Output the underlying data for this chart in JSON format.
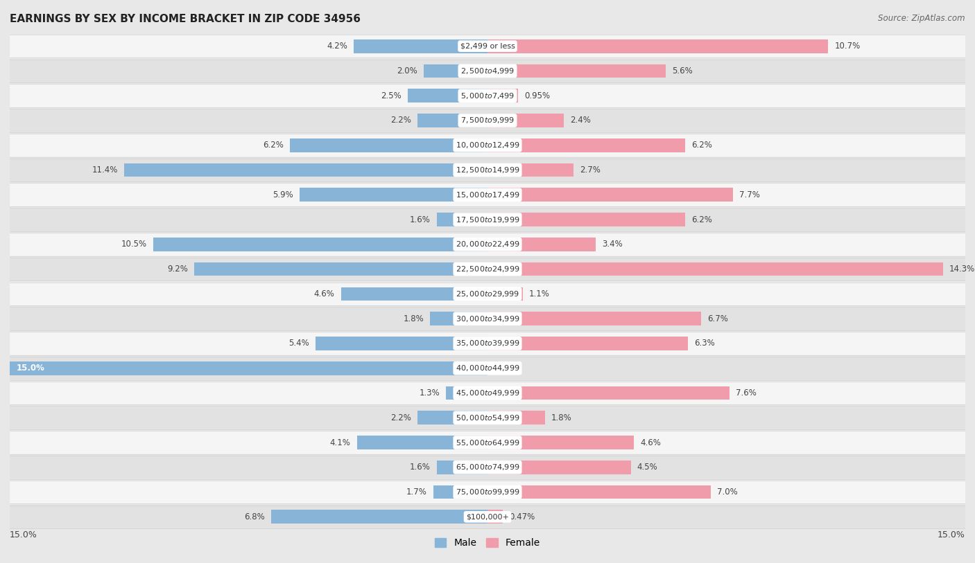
{
  "title": "EARNINGS BY SEX BY INCOME BRACKET IN ZIP CODE 34956",
  "source": "Source: ZipAtlas.com",
  "categories": [
    "$2,499 or less",
    "$2,500 to $4,999",
    "$5,000 to $7,499",
    "$7,500 to $9,999",
    "$10,000 to $12,499",
    "$12,500 to $14,999",
    "$15,000 to $17,499",
    "$17,500 to $19,999",
    "$20,000 to $22,499",
    "$22,500 to $24,999",
    "$25,000 to $29,999",
    "$30,000 to $34,999",
    "$35,000 to $39,999",
    "$40,000 to $44,999",
    "$45,000 to $49,999",
    "$50,000 to $54,999",
    "$55,000 to $64,999",
    "$65,000 to $74,999",
    "$75,000 to $99,999",
    "$100,000+"
  ],
  "male_values": [
    4.2,
    2.0,
    2.5,
    2.2,
    6.2,
    11.4,
    5.9,
    1.6,
    10.5,
    9.2,
    4.6,
    1.8,
    5.4,
    15.0,
    1.3,
    2.2,
    4.1,
    1.6,
    1.7,
    6.8
  ],
  "female_values": [
    10.7,
    5.6,
    0.95,
    2.4,
    6.2,
    2.7,
    7.7,
    6.2,
    3.4,
    14.3,
    1.1,
    6.7,
    6.3,
    0.0,
    7.6,
    1.8,
    4.6,
    4.5,
    7.0,
    0.47
  ],
  "male_color": "#88b4d8",
  "female_color": "#f19caa",
  "background_color": "#e8e8e8",
  "row_color_light": "#f5f5f5",
  "row_color_dark": "#e2e2e2",
  "row_border_color": "#d0d0d0",
  "max_value": 15.0,
  "legend_male": "Male",
  "legend_female": "Female",
  "label_bg": "#ffffff",
  "male_label_inside_color": "#ffffff",
  "female_label_inside_color": "#ffffff"
}
